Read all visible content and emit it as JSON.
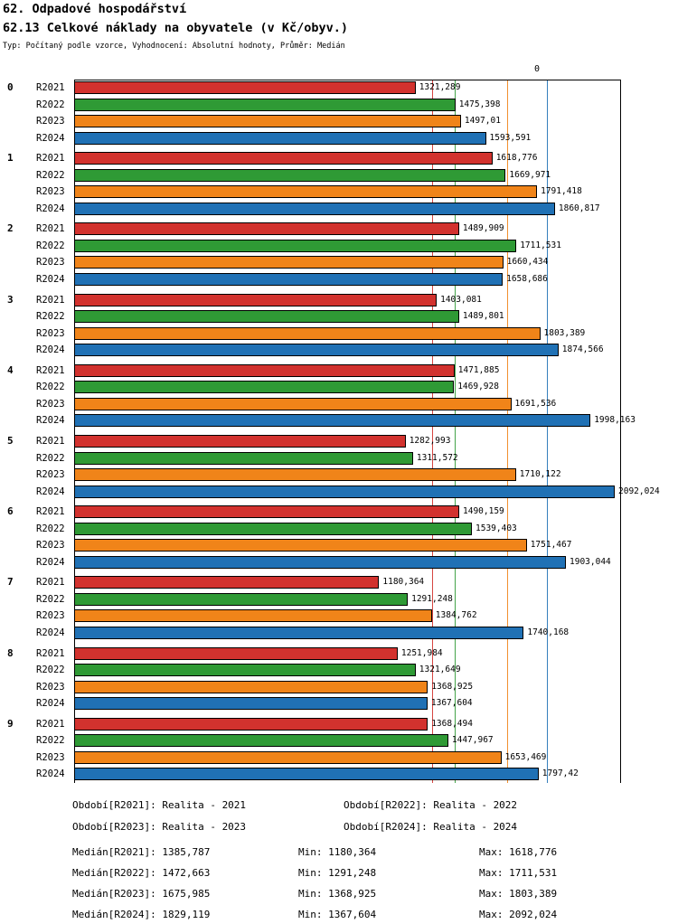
{
  "header": {
    "title1": "62. Odpadové hospodářství",
    "title2": "62.13 Celkové náklady na obyvatele (v Kč/obyv.)",
    "subtitle": "Typ: Počítaný podle vzorce, Vyhodnocení: Absolutní hodnoty, Průměr: Medián"
  },
  "axis": {
    "zero_label": "0"
  },
  "chart_data": {
    "type": "bar",
    "orientation": "horizontal",
    "unit": "Kč/obyv.",
    "title": "62.13 Celkové náklady na obyvatele (v Kč/obyv.)",
    "categories": [
      "0",
      "1",
      "2",
      "3",
      "4",
      "5",
      "6",
      "7",
      "8",
      "9"
    ],
    "axis_max": 2113,
    "grid": "median-lines-per-series",
    "legend_position": "bottom",
    "series": [
      {
        "name": "R2021",
        "color": "#d2322e",
        "values": [
          1321.289,
          1618.776,
          1489.909,
          1403.081,
          1471.885,
          1282.993,
          1490.159,
          1180.364,
          1251.984,
          1368.494
        ],
        "labels": [
          "1321,289",
          "1618,776",
          "1489,909",
          "1403,081",
          "1471,885",
          "1282,993",
          "1490,159",
          "1180,364",
          "1251,984",
          "1368,494"
        ],
        "median": 1385.787
      },
      {
        "name": "R2022",
        "color": "#2f9a35",
        "values": [
          1475.398,
          1669.971,
          1711.531,
          1489.801,
          1469.928,
          1311.572,
          1539.403,
          1291.248,
          1321.649,
          1447.967
        ],
        "labels": [
          "1475,398",
          "1669,971",
          "1711,531",
          "1489,801",
          "1469,928",
          "1311,572",
          "1539,403",
          "1291,248",
          "1321,649",
          "1447,967"
        ],
        "median": 1472.663
      },
      {
        "name": "R2023",
        "color": "#f08419",
        "values": [
          1497.01,
          1791.418,
          1660.434,
          1803.389,
          1691.536,
          1710.122,
          1751.467,
          1384.762,
          1368.925,
          1653.469
        ],
        "labels": [
          "1497,01",
          "1791,418",
          "1660,434",
          "1803,389",
          "1691,536",
          "1710,122",
          "1751,467",
          "1384,762",
          "1368,925",
          "1653,469"
        ],
        "median": 1675.985
      },
      {
        "name": "R2024",
        "color": "#2071b5",
        "values": [
          1593.591,
          1860.817,
          1658.686,
          1874.566,
          1998.163,
          2092.024,
          1903.044,
          1740.168,
          1367.604,
          1797.42
        ],
        "labels": [
          "1593,591",
          "1860,817",
          "1658,686",
          "1874,566",
          "1998,163",
          "2092,024",
          "1903,044",
          "1740,168",
          "1367,604",
          "1797,42"
        ],
        "median": 1829.119
      }
    ]
  },
  "legend": [
    "Období[R2021]: Realita - 2021",
    "Období[R2022]: Realita - 2022",
    "Období[R2023]: Realita - 2023",
    "Období[R2024]: Realita - 2024"
  ],
  "stats": [
    {
      "median": "Medián[R2021]: 1385,787",
      "min": "Min: 1180,364",
      "max": "Max: 1618,776"
    },
    {
      "median": "Medián[R2022]: 1472,663",
      "min": "Min: 1291,248",
      "max": "Max: 1711,531"
    },
    {
      "median": "Medián[R2023]: 1675,985",
      "min": "Min: 1368,925",
      "max": "Max: 1803,389"
    },
    {
      "median": "Medián[R2024]: 1829,119",
      "min": "Min: 1367,604",
      "max": "Max: 2092,024"
    }
  ]
}
